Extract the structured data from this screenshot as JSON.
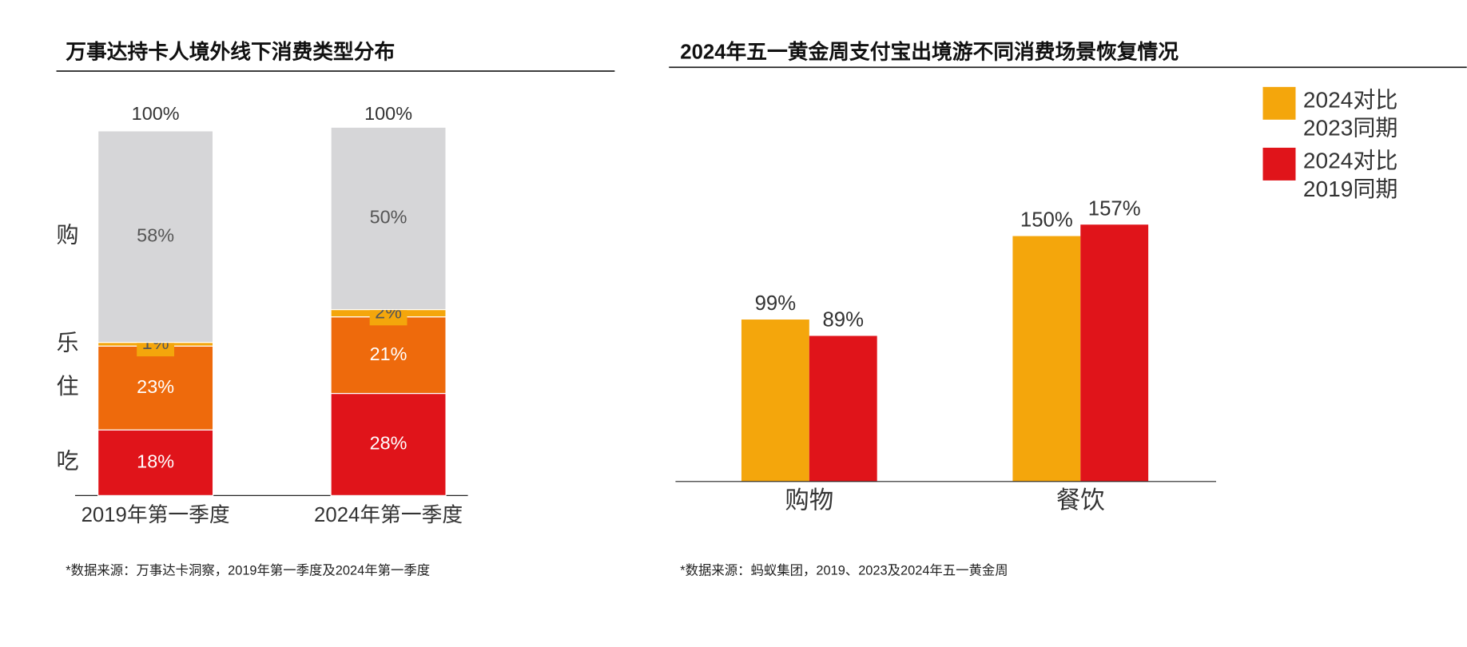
{
  "chart_data": [
    {
      "type": "bar",
      "stacked": true,
      "title": "万事达持卡人境外线下消费类型分布",
      "categories": [
        "2019年第一季度",
        "2024年第一季度"
      ],
      "series": [
        {
          "name": "吃",
          "color": "#e0141a",
          "values": [
            18,
            28
          ],
          "value_labels": [
            "18%",
            "28%"
          ]
        },
        {
          "name": "住",
          "color": "#ee6a0c",
          "values": [
            23,
            21
          ],
          "value_labels": [
            "23%",
            "21%"
          ]
        },
        {
          "name": "乐",
          "color": "#f4a60c",
          "values": [
            1,
            2
          ],
          "value_labels": [
            "1%",
            "2%"
          ]
        },
        {
          "name": "购",
          "color": "#d6d6d8",
          "values": [
            58,
            50
          ],
          "value_labels": [
            "58%",
            "50%"
          ]
        }
      ],
      "totals": [
        100,
        100
      ],
      "total_labels": [
        "100%",
        "100%"
      ],
      "ylim": [
        0,
        100
      ],
      "note": "*数据来源：万事达卡洞察，2019年第一季度及2024年第一季度"
    },
    {
      "type": "bar",
      "title": "2024年五一黄金周支付宝出境游不同消费场景恢复情况",
      "categories": [
        "购物",
        "餐饮"
      ],
      "series": [
        {
          "name": "2024对比 2023同期",
          "color": "#f4a60c",
          "values": [
            99,
            150
          ],
          "value_labels": [
            "99%",
            "150%"
          ]
        },
        {
          "name": "2024对比 2019同期",
          "color": "#e0141a",
          "values": [
            89,
            157
          ],
          "value_labels": [
            "89%",
            "157%"
          ]
        }
      ],
      "ylim": [
        0,
        200
      ],
      "legend": "upper right",
      "note": "*数据来源：蚂蚁集团，2019、2023及2024年五一黄金周"
    }
  ]
}
